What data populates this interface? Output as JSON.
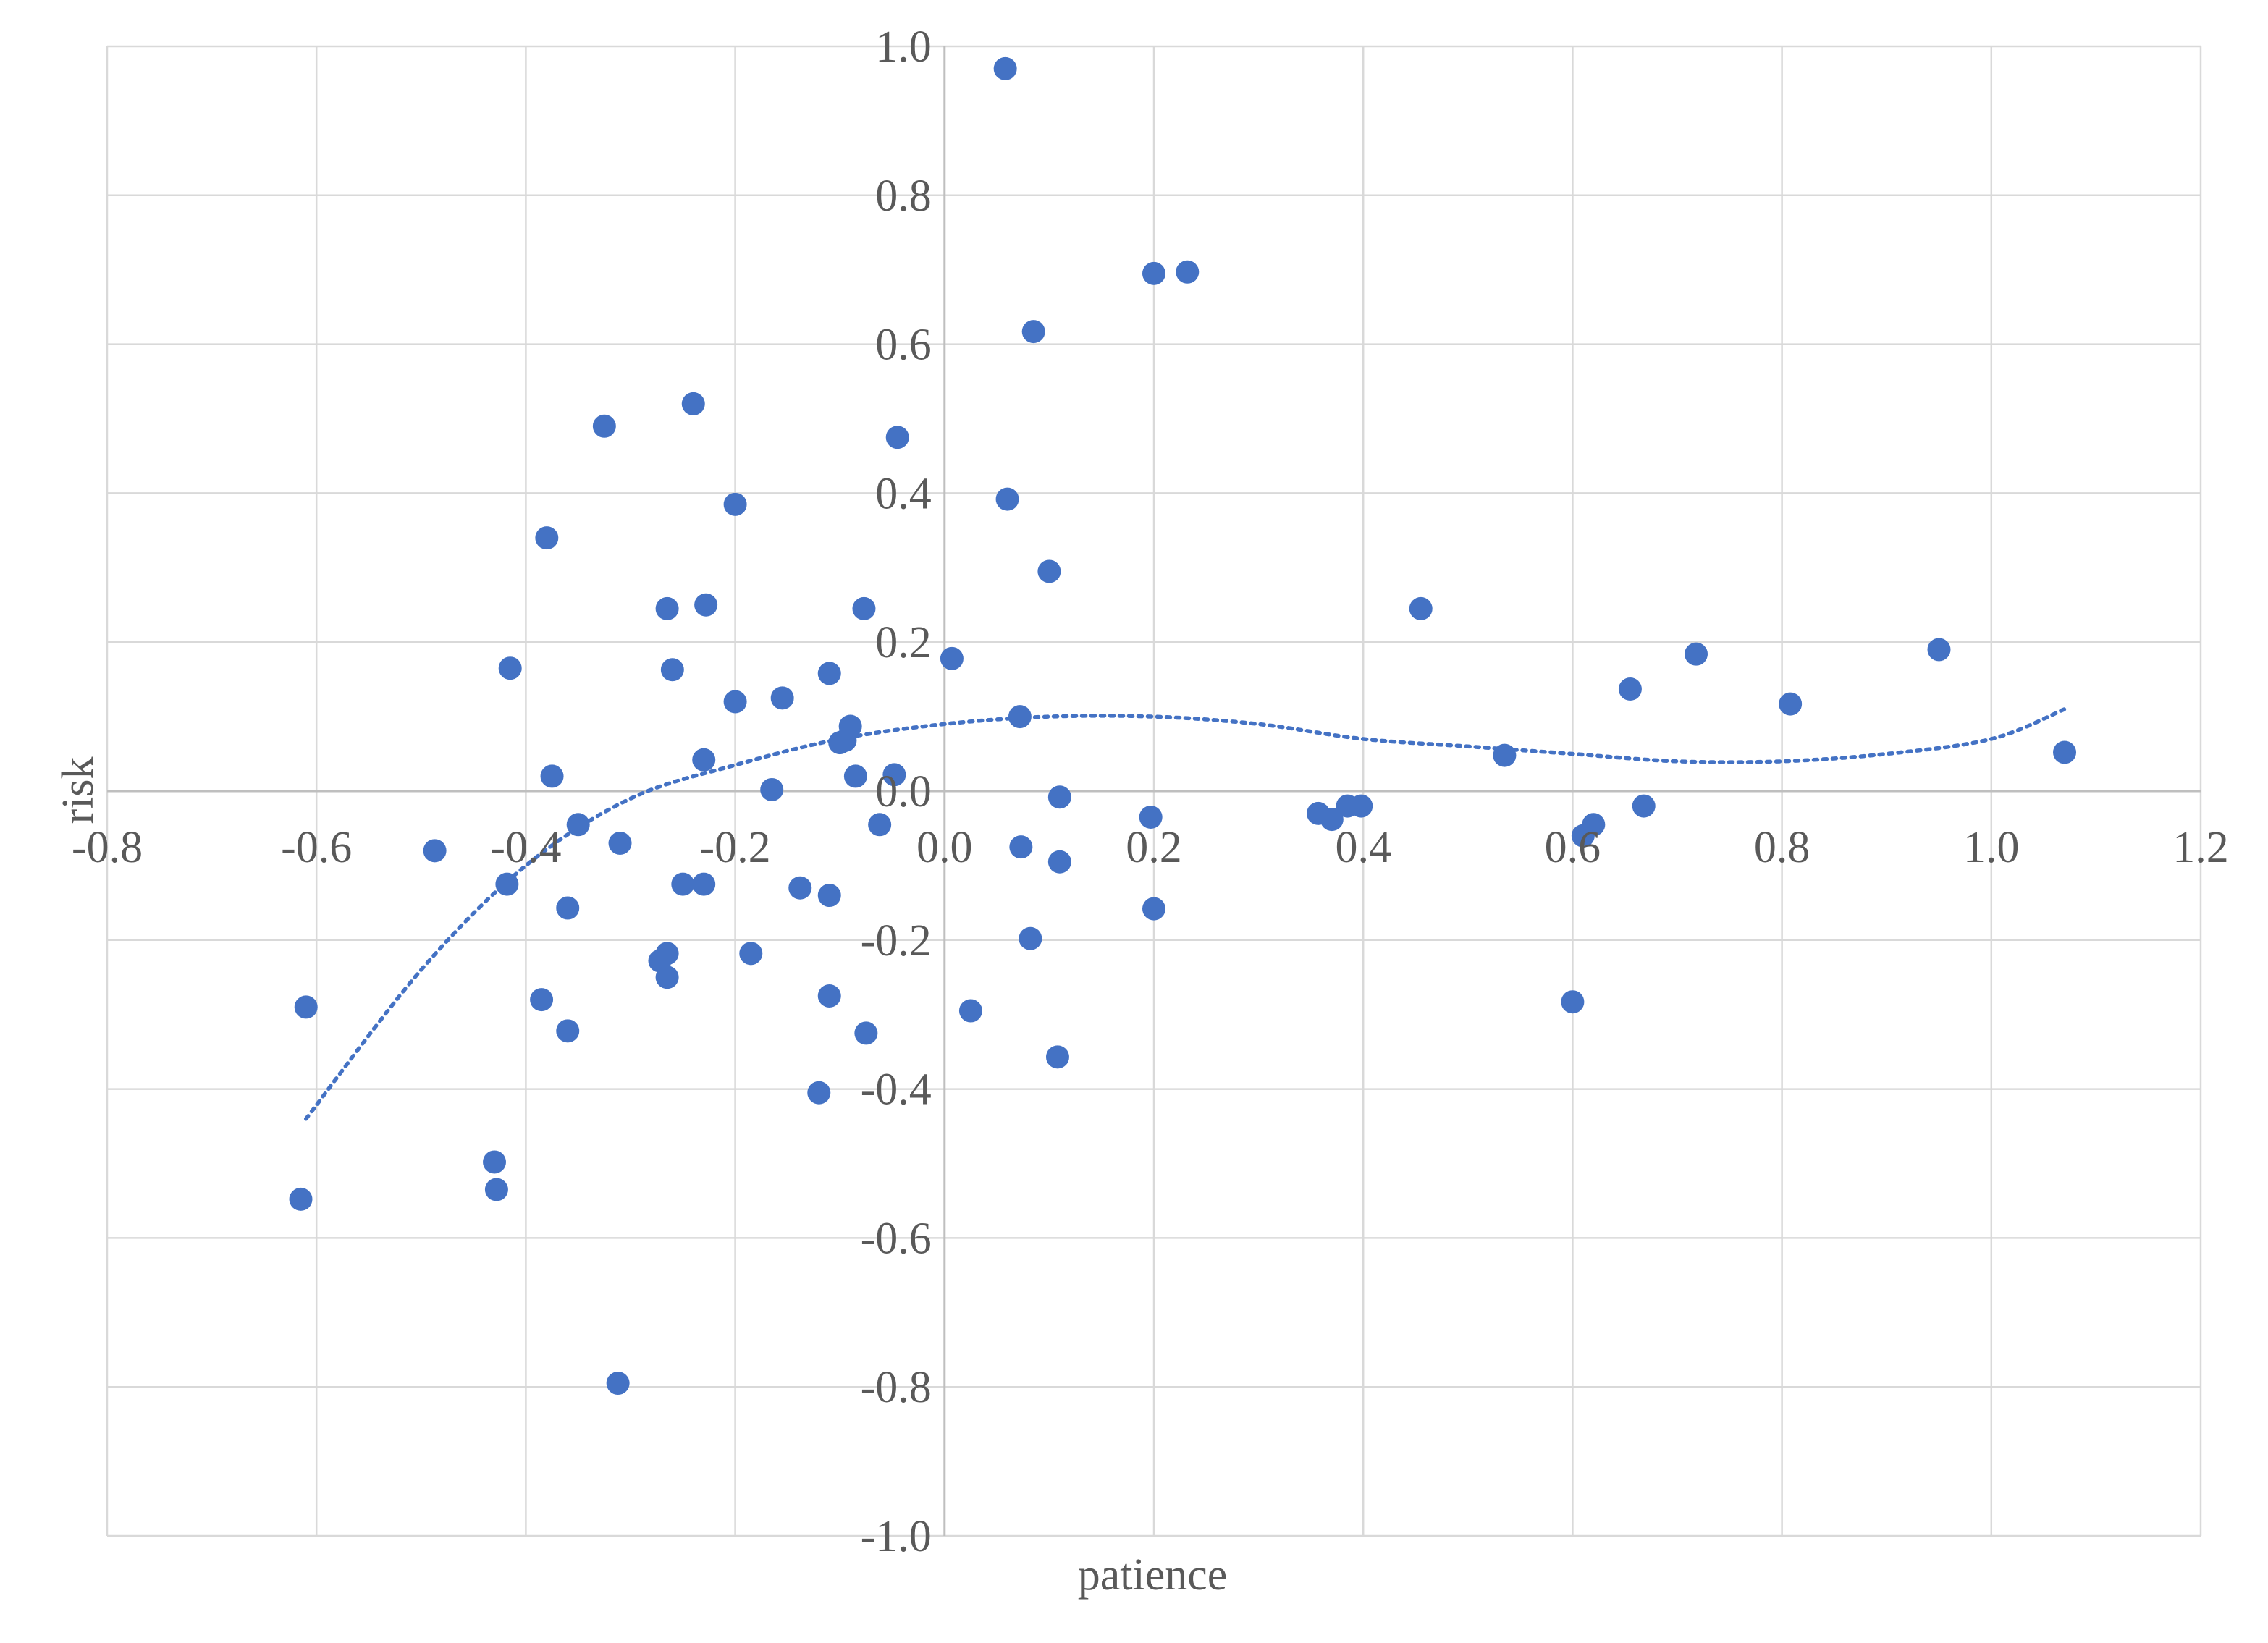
{
  "chart_data": {
    "type": "scatter",
    "xlabel": "patience",
    "ylabel": "risk",
    "xlim": [
      -0.8,
      1.2
    ],
    "ylim": [
      -1.0,
      1.0
    ],
    "x_ticks": [
      "-0.8",
      "-0.6",
      "-0.4",
      "-0.2",
      "0.0",
      "0.2",
      "0.4",
      "0.6",
      "0.8",
      "1.0",
      "1.2"
    ],
    "y_ticks": [
      "-1.0",
      "-0.8",
      "-0.6",
      "-0.4",
      "-0.2",
      "0.0",
      "0.2",
      "0.4",
      "0.6",
      "0.8",
      "1.0"
    ],
    "grid": true,
    "marker_color": "#4472C4",
    "trendline": {
      "type": "polynomial",
      "order": 3,
      "style": "dotted",
      "color": "#4472C4",
      "x_range": [
        -0.61,
        1.07
      ],
      "points": [
        [
          -0.61,
          -0.44
        ],
        [
          -0.5,
          -0.24
        ],
        [
          -0.4,
          -0.1
        ],
        [
          -0.3,
          -0.01
        ],
        [
          -0.2,
          0.035
        ],
        [
          -0.1,
          0.07
        ],
        [
          0.0,
          0.09
        ],
        [
          0.1,
          0.1
        ],
        [
          0.2,
          0.1
        ],
        [
          0.3,
          0.09
        ],
        [
          0.4,
          0.07
        ],
        [
          0.5,
          0.06
        ],
        [
          0.6,
          0.05
        ],
        [
          0.7,
          0.04
        ],
        [
          0.8,
          0.04
        ],
        [
          0.9,
          0.05
        ],
        [
          1.0,
          0.07
        ],
        [
          1.07,
          0.11
        ]
      ]
    },
    "points": [
      [
        0.058,
        0.97
      ],
      [
        0.2,
        0.695
      ],
      [
        0.232,
        0.697
      ],
      [
        0.085,
        0.617
      ],
      [
        -0.24,
        0.52
      ],
      [
        -0.325,
        0.49
      ],
      [
        -0.045,
        0.475
      ],
      [
        -0.2,
        0.385
      ],
      [
        0.06,
        0.392
      ],
      [
        -0.38,
        0.34
      ],
      [
        0.1,
        0.295
      ],
      [
        -0.265,
        0.245
      ],
      [
        -0.228,
        0.25
      ],
      [
        -0.077,
        0.245
      ],
      [
        0.455,
        0.245
      ],
      [
        -0.415,
        0.165
      ],
      [
        -0.26,
        0.163
      ],
      [
        -0.11,
        0.158
      ],
      [
        0.007,
        0.178
      ],
      [
        0.718,
        0.184
      ],
      [
        0.95,
        0.19
      ],
      [
        -0.2,
        0.12
      ],
      [
        -0.155,
        0.125
      ],
      [
        0.655,
        0.137
      ],
      [
        0.808,
        0.117
      ],
      [
        0.072,
        0.1
      ],
      [
        -0.09,
        0.087
      ],
      [
        -0.1,
        0.065
      ],
      [
        -0.095,
        0.068
      ],
      [
        0.535,
        0.048
      ],
      [
        1.07,
        0.052
      ],
      [
        -0.23,
        0.042
      ],
      [
        -0.375,
        0.02
      ],
      [
        -0.085,
        0.02
      ],
      [
        -0.048,
        0.022
      ],
      [
        -0.165,
        0.002
      ],
      [
        0.11,
        -0.008
      ],
      [
        0.357,
        -0.03
      ],
      [
        0.37,
        -0.038
      ],
      [
        0.385,
        -0.02
      ],
      [
        0.398,
        -0.02
      ],
      [
        0.197,
        -0.035
      ],
      [
        0.668,
        -0.02
      ],
      [
        -0.35,
        -0.045
      ],
      [
        -0.062,
        -0.045
      ],
      [
        0.62,
        -0.045
      ],
      [
        0.61,
        -0.06
      ],
      [
        -0.31,
        -0.07
      ],
      [
        -0.487,
        -0.08
      ],
      [
        0.073,
        -0.075
      ],
      [
        0.11,
        -0.095
      ],
      [
        -0.418,
        -0.125
      ],
      [
        -0.25,
        -0.125
      ],
      [
        -0.23,
        -0.125
      ],
      [
        -0.138,
        -0.13
      ],
      [
        -0.11,
        -0.14
      ],
      [
        -0.36,
        -0.157
      ],
      [
        0.2,
        -0.158
      ],
      [
        0.082,
        -0.198
      ],
      [
        -0.185,
        -0.218
      ],
      [
        -0.265,
        -0.218
      ],
      [
        -0.272,
        -0.228
      ],
      [
        -0.265,
        -0.25
      ],
      [
        -0.61,
        -0.29
      ],
      [
        -0.385,
        -0.28
      ],
      [
        -0.11,
        -0.275
      ],
      [
        0.025,
        -0.295
      ],
      [
        0.6,
        -0.283
      ],
      [
        -0.36,
        -0.322
      ],
      [
        -0.075,
        -0.325
      ],
      [
        0.108,
        -0.357
      ],
      [
        -0.12,
        -0.405
      ],
      [
        -0.43,
        -0.498
      ],
      [
        -0.428,
        -0.535
      ],
      [
        -0.615,
        -0.548
      ],
      [
        -0.312,
        -0.795
      ]
    ]
  }
}
